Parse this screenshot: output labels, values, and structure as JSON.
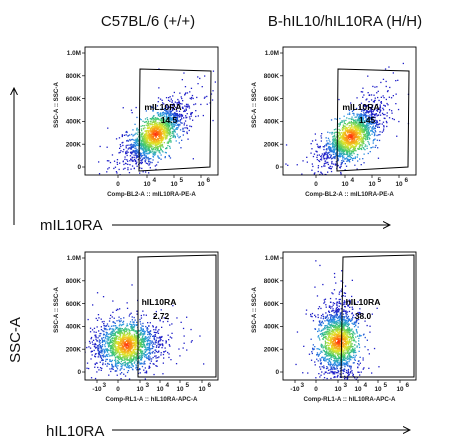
{
  "chart_data": [
    {
      "type": "scatter",
      "column_title": "C57BL/6 (+/+)",
      "xlabel": "Comp-BL2-A :: mIL10RA-PE-A",
      "ylabel": "SSC-A :: SSC-A",
      "x_ticks": [
        "0",
        "10",
        "10",
        "10"
      ],
      "x_tick_exponents": [
        "",
        "4",
        "5",
        "6"
      ],
      "y_ticks": [
        "0",
        "200K",
        "400K",
        "600K",
        "800K",
        "1.0M"
      ],
      "gate": {
        "label": "mIL10RA",
        "value": "14.5"
      },
      "population": {
        "x_center_decade": 4.3,
        "y_center": 350000,
        "shape": "diagonal"
      }
    },
    {
      "type": "scatter",
      "column_title": "B-hIL10/hIL10RA (H/H)",
      "xlabel": "Comp-BL2-A :: mIL10RA-PE-A",
      "ylabel": "SSC-A :: SSC-A",
      "x_ticks": [
        "0",
        "10",
        "10",
        "10"
      ],
      "x_tick_exponents": [
        "",
        "4",
        "5",
        "6"
      ],
      "y_ticks": [
        "0",
        "200K",
        "400K",
        "600K",
        "800K",
        "1.0M"
      ],
      "gate": {
        "label": "mIL10RA",
        "value": "1.45"
      },
      "population": {
        "x_center_decade": 4.2,
        "y_center": 330000,
        "shape": "diagonal"
      }
    },
    {
      "type": "scatter",
      "xlabel": "Comp-RL1-A :: hIL10RA-APC-A",
      "ylabel": "SSC-A :: SSC-A",
      "x_ticks": [
        "-10",
        "0",
        "10",
        "10",
        "10",
        "10"
      ],
      "x_tick_exponents": [
        "3",
        "",
        "3",
        "4",
        "5",
        "6"
      ],
      "y_ticks": [
        "0",
        "200K",
        "400K",
        "600K",
        "800K",
        "1.0M"
      ],
      "gate": {
        "label": "hIL10RA",
        "value": "2.72"
      },
      "population": {
        "x_center_decade": 2.3,
        "y_center": 300000,
        "shape": "round"
      }
    },
    {
      "type": "scatter",
      "xlabel": "Comp-RL1-A :: hIL10RA-APC-A",
      "ylabel": "SSC-A :: SSC-A",
      "x_ticks": [
        "-10",
        "0",
        "10",
        "10",
        "10",
        "10"
      ],
      "x_tick_exponents": [
        "3",
        "",
        "3",
        "4",
        "5",
        "6"
      ],
      "y_ticks": [
        "0",
        "200K",
        "400K",
        "600K",
        "800K",
        "1.0M"
      ],
      "gate": {
        "label": "hIL10RA",
        "value": "38.0"
      },
      "population": {
        "x_center_decade": 3.0,
        "y_center": 330000,
        "shape": "vertical"
      }
    }
  ],
  "row_labels": {
    "top": "mIL10RA",
    "bottom": "hIL10RA"
  },
  "side_label": "SSC-A",
  "colors": {
    "outline": "#000000",
    "density_low": "#1f1fd0",
    "density_mid": "#3fd06a",
    "density_high": "#ff3a12"
  }
}
